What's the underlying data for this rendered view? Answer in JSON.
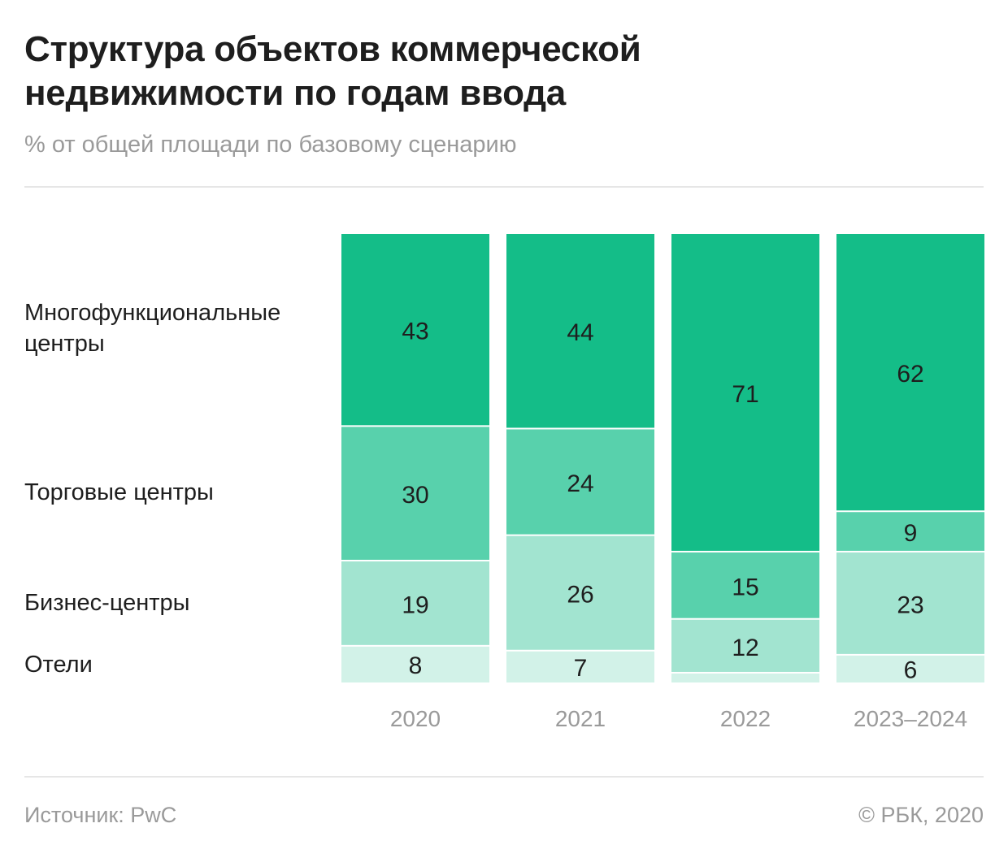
{
  "title": "Структура объектов коммерческой недвижимости по годам ввода",
  "subtitle": "% от общей площади по базовому сценарию",
  "footer": {
    "source": "Источник: PwC",
    "copyright": "© РБК, 2020"
  },
  "colors": {
    "mfc": "#14bd88",
    "mall": "#58d1ac",
    "business": "#a2e4d0",
    "hotel": "#d2f2e8"
  },
  "chart_data": {
    "type": "bar",
    "stacked": true,
    "normalized_percent": true,
    "categories": [
      "2020",
      "2021",
      "2022",
      "2023–2024"
    ],
    "series": [
      {
        "name": "Многофункциональные центры",
        "values": [
          43,
          44,
          71,
          62
        ],
        "labels": [
          "43",
          "44",
          "71",
          "62"
        ],
        "color": "#14bd88"
      },
      {
        "name": "Торговые центры",
        "values": [
          30,
          24,
          15,
          9
        ],
        "labels": [
          "30",
          "24",
          "15",
          "9"
        ],
        "color": "#58d1ac"
      },
      {
        "name": "Бизнес-центры",
        "values": [
          19,
          26,
          12,
          23
        ],
        "labels": [
          "19",
          "26",
          "12",
          "23"
        ],
        "color": "#a2e4d0"
      },
      {
        "name": "Отели",
        "values": [
          8,
          7,
          2,
          6
        ],
        "labels": [
          "8",
          "7",
          "",
          "6"
        ],
        "color": "#d2f2e8"
      }
    ],
    "legend_position": "left",
    "grid": false
  }
}
